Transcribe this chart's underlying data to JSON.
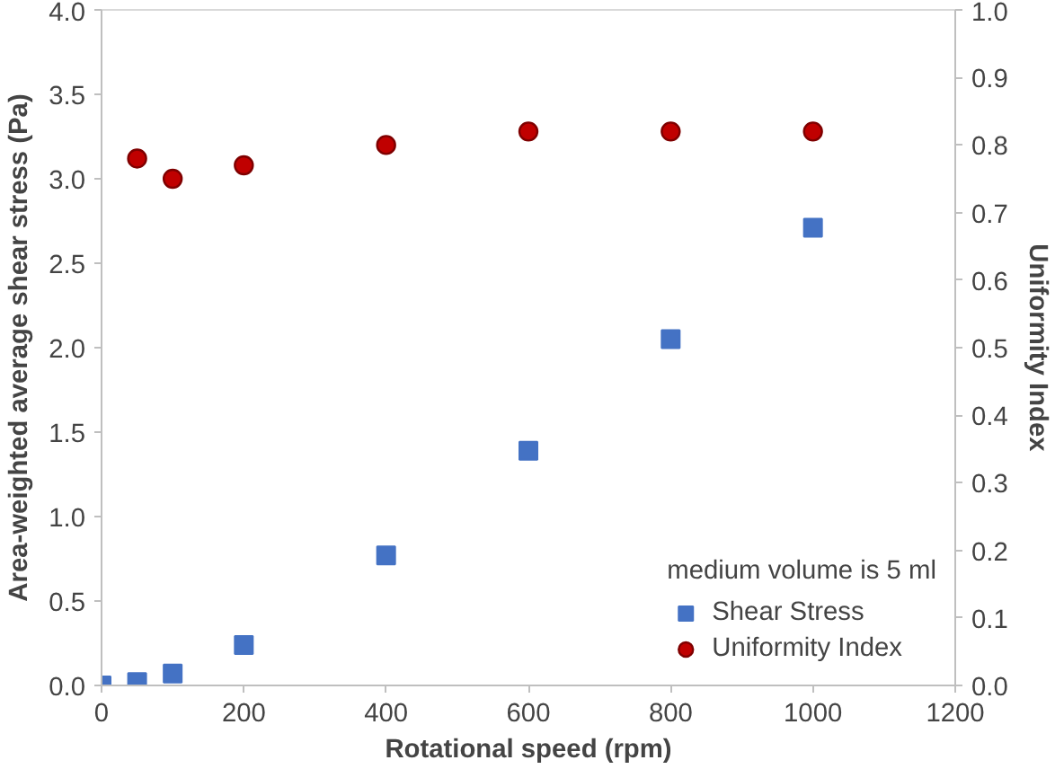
{
  "chart_data": {
    "type": "scatter",
    "xlabel": "Rotational speed (rpm)",
    "ylabel": "Area-weighted average shear stress (Pa)",
    "y2label": "Uniformity Index",
    "legend_title": "medium volume is 5 ml",
    "legend": "bottom right",
    "grid": false,
    "xlim": [
      0,
      1200
    ],
    "xticks": [
      0,
      200,
      400,
      600,
      800,
      1000,
      1200
    ],
    "ylim": [
      0,
      4
    ],
    "yticks": [
      {
        "value": 0,
        "label": "0.0"
      },
      {
        "value": 0.5,
        "label": "0.5"
      },
      {
        "value": 1,
        "label": "1.0"
      },
      {
        "value": 1.5,
        "label": "1.5"
      },
      {
        "value": 2,
        "label": "2.0"
      },
      {
        "value": 2.5,
        "label": "2.5"
      },
      {
        "value": 3,
        "label": "3.0"
      },
      {
        "value": 3.5,
        "label": "3.5"
      },
      {
        "value": 4,
        "label": "4.0"
      }
    ],
    "y2lim": [
      0,
      1
    ],
    "y2ticks": [
      {
        "value": 0,
        "label": "0.0"
      },
      0.1,
      0.2,
      0.3,
      0.4,
      0.5,
      0.6,
      0.7,
      0.8,
      0.9,
      {
        "value": 1,
        "label": "1.0"
      }
    ],
    "series": [
      {
        "name": "Shear Stress",
        "color": "#4472c4",
        "marker": "square",
        "x": [
          0,
          50,
          100,
          200,
          400,
          600,
          800,
          1000
        ],
        "values": [
          0.0,
          0.02,
          0.07,
          0.24,
          0.77,
          1.39,
          2.05,
          2.71
        ]
      },
      {
        "name": "Uniformity Index",
        "color": "#c00000",
        "marker": "circle",
        "axis": "y2",
        "x": [
          50,
          100,
          200,
          400,
          600,
          800,
          1000
        ],
        "values": [
          0.78,
          0.75,
          0.77,
          0.8,
          0.82,
          0.82,
          0.82
        ]
      }
    ]
  }
}
